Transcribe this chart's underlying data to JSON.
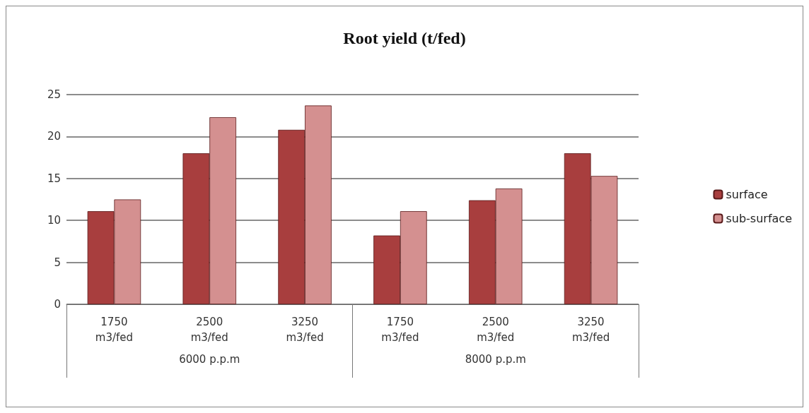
{
  "chart_data": {
    "type": "bar",
    "title": "Root yield (t/fed)",
    "categories": [
      "1750 m3/fed",
      "2500 m3/fed",
      "3250 m3/fed",
      "1750 m3/fed",
      "2500 m3/fed",
      "3250 m3/fed"
    ],
    "series": [
      {
        "name": "surface",
        "color": "#a83e3e",
        "values": [
          11.1,
          18.0,
          20.8,
          8.2,
          12.4,
          18.0
        ]
      },
      {
        "name": "sub-surface",
        "color": "#d49090",
        "values": [
          12.5,
          22.3,
          23.7,
          11.1,
          13.8,
          15.3
        ]
      }
    ],
    "annotations": [
      "6000 p.p.m",
      "8000 p.p.m"
    ],
    "ylim": [
      0,
      25
    ],
    "yticks": [
      0,
      5,
      10,
      15,
      20,
      25
    ],
    "grid": "y",
    "legend": "right"
  }
}
